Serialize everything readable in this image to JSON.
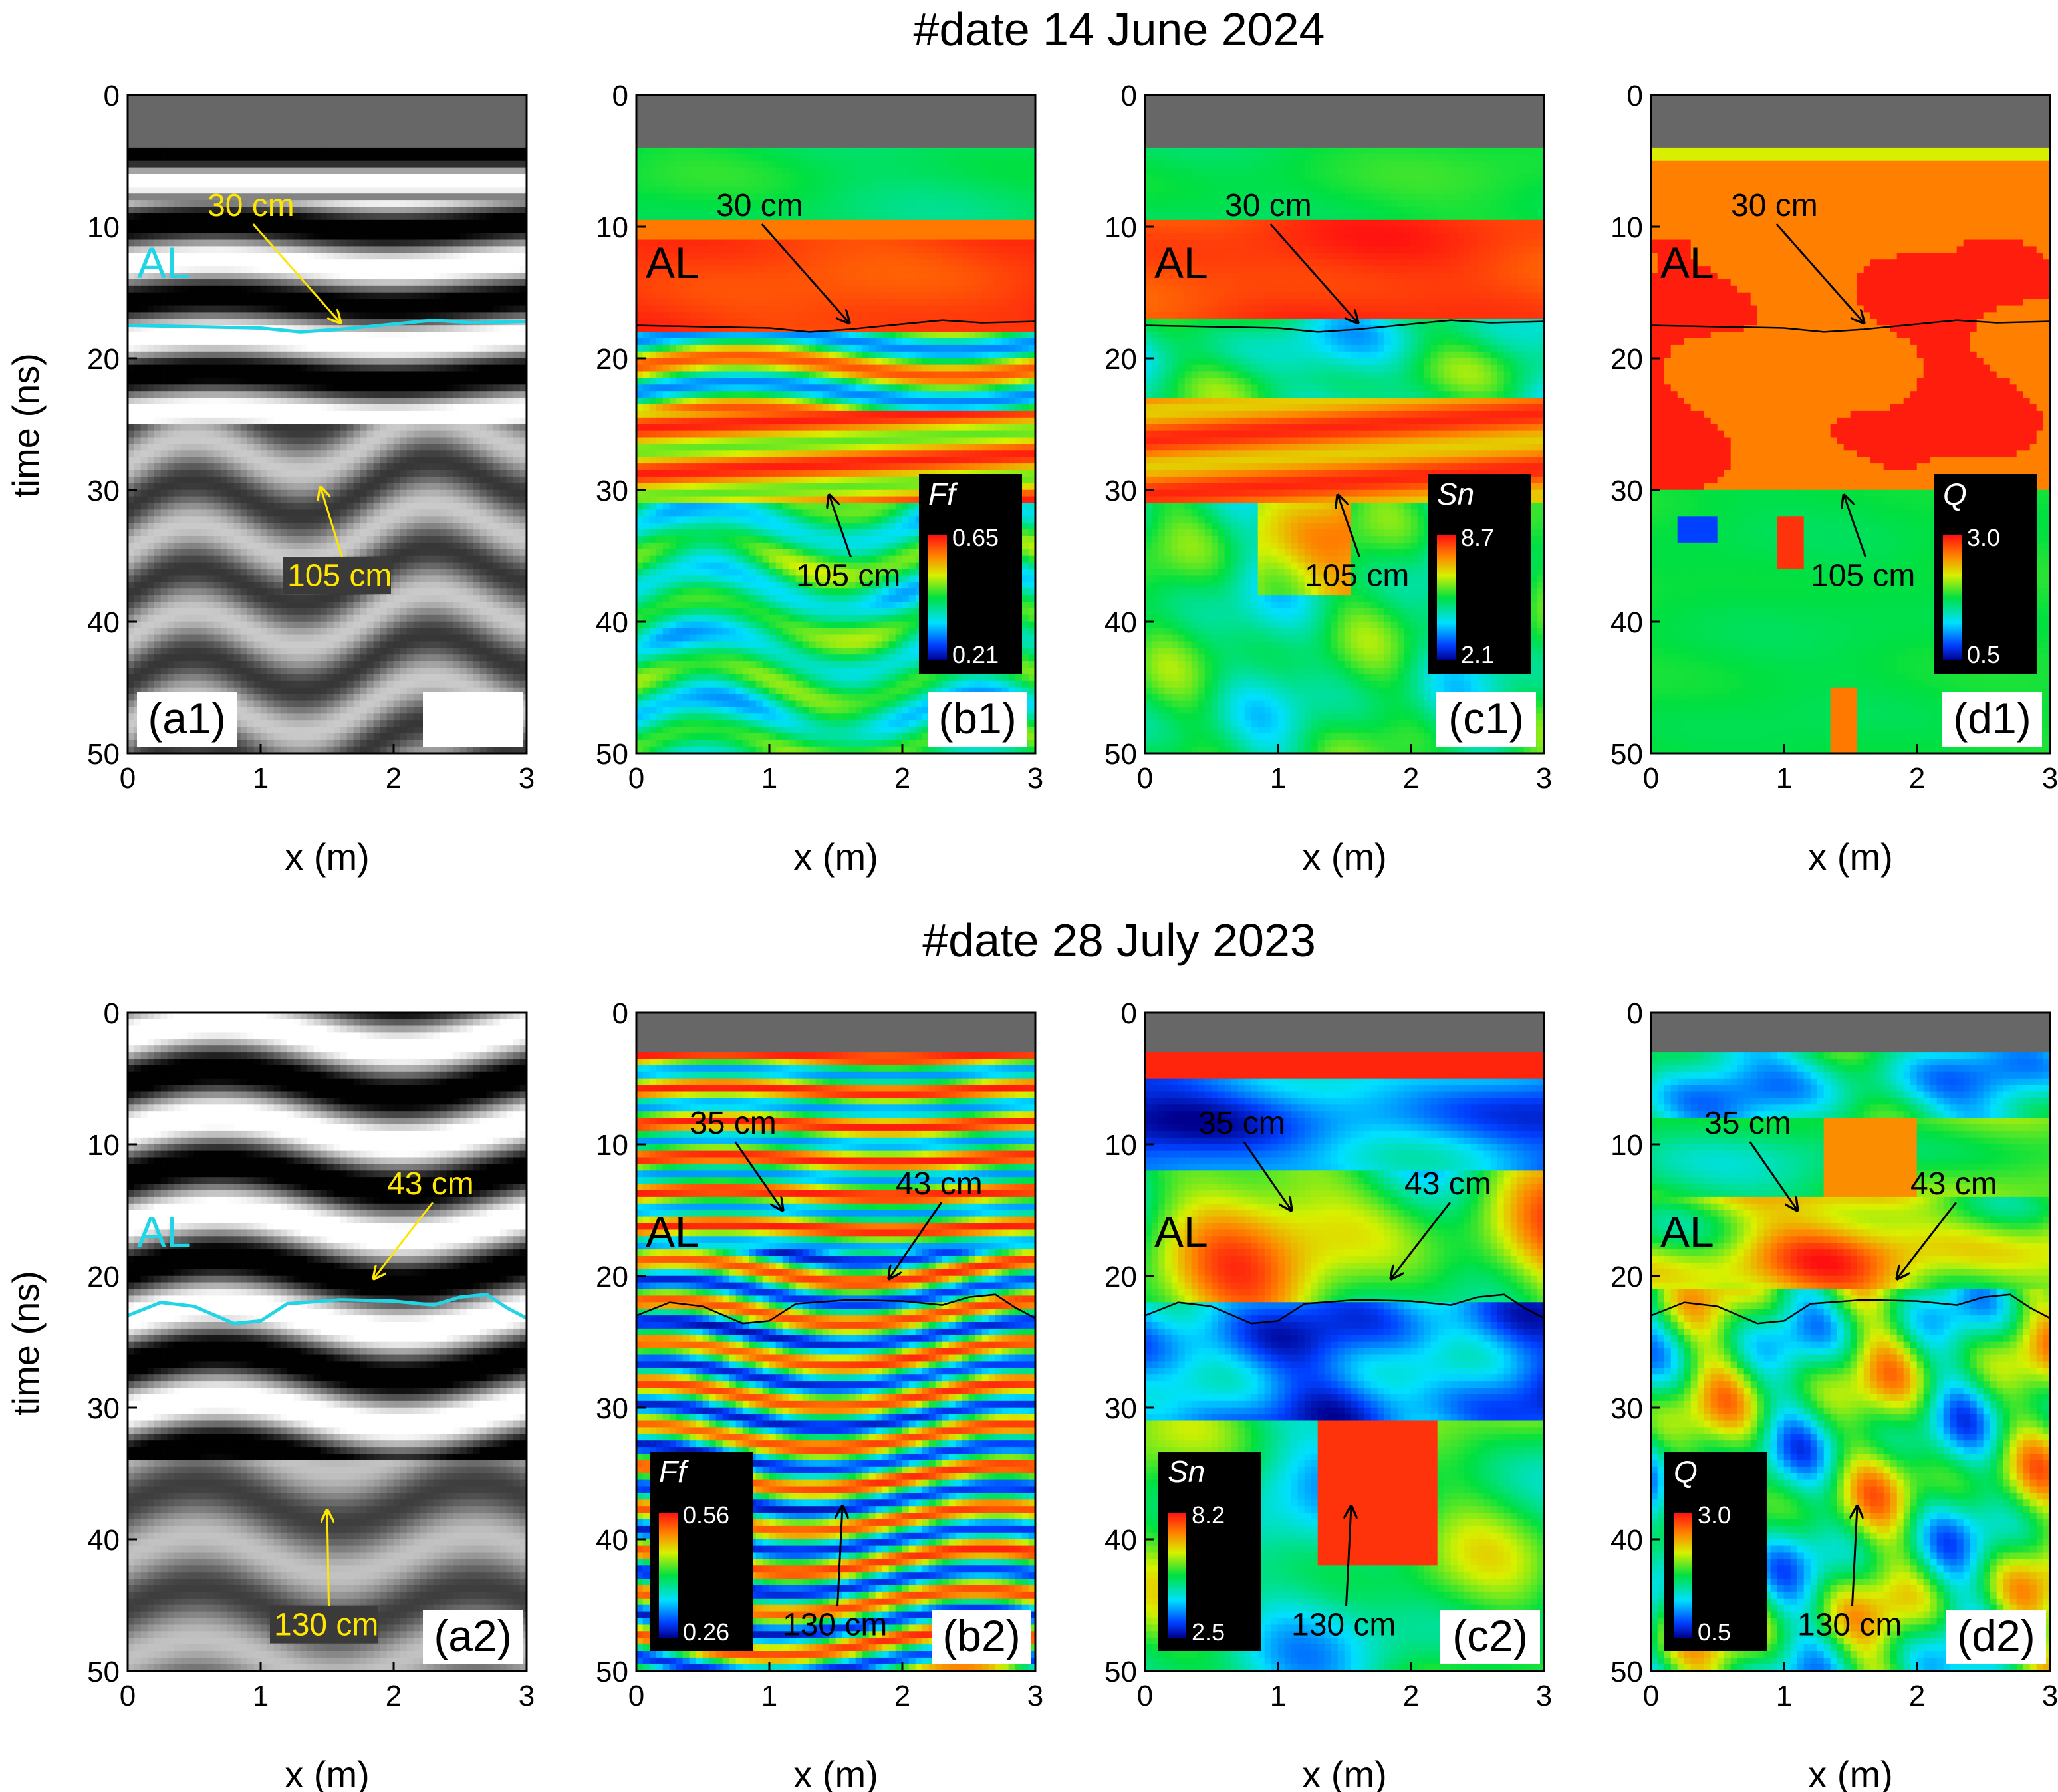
{
  "chart_data": {
    "type": "heatmap",
    "description_rows": [
      {
        "title": "#date 14 June 2024"
      },
      {
        "title": "#date 28 July 2023"
      }
    ],
    "xlabel": "x (m)",
    "ylabel": "time (ns)",
    "xlim": [
      0,
      3
    ],
    "ylim": [
      0,
      50
    ],
    "x_ticks": [
      "0",
      "1",
      "2",
      "3"
    ],
    "y_ticks": [
      "0",
      "10",
      "20",
      "30",
      "40",
      "50"
    ],
    "al_label": "AL",
    "panels": [
      {
        "id": "a1",
        "row": 0,
        "col": 0,
        "kind": "gpr",
        "label": "(a1)",
        "top_ns": 4.2,
        "line_color": "#21d4e6",
        "boundary": [
          [
            0,
            17.5
          ],
          [
            0.5,
            17.6
          ],
          [
            1.0,
            17.7
          ],
          [
            1.3,
            18.0
          ],
          [
            1.6,
            17.8
          ],
          [
            2.0,
            17.4
          ],
          [
            2.3,
            17.1
          ],
          [
            2.6,
            17.3
          ],
          [
            3,
            17.2
          ]
        ],
        "annotations": [
          {
            "text": "30 cm",
            "color": "#ffe600",
            "tx": 0.6,
            "ty": 9.2,
            "ax": 1.6,
            "ay": 17.3,
            "box": false
          },
          {
            "text": "105 cm",
            "color": "#ffe600",
            "tx": 1.2,
            "ty": 37.3,
            "ax": 1.45,
            "ay": 29.8,
            "box": true
          }
        ]
      },
      {
        "id": "b1",
        "row": 0,
        "col": 1,
        "kind": "Ff",
        "label": "(b1)",
        "top_ns": 4.2,
        "line_color": "#000000",
        "colorbar": {
          "name": "Ff",
          "max": "0.65",
          "min": "0.21",
          "corner": "bottom-right"
        },
        "boundary": [
          [
            0,
            17.5
          ],
          [
            0.5,
            17.6
          ],
          [
            1.0,
            17.7
          ],
          [
            1.3,
            18.0
          ],
          [
            1.6,
            17.8
          ],
          [
            2.0,
            17.4
          ],
          [
            2.3,
            17.1
          ],
          [
            2.6,
            17.3
          ],
          [
            3,
            17.2
          ]
        ],
        "annotations": [
          {
            "text": "30 cm",
            "color": "#000000",
            "tx": 0.6,
            "ty": 9.2,
            "ax": 1.6,
            "ay": 17.3,
            "box": false
          },
          {
            "text": "105 cm",
            "color": "#000000",
            "tx": 1.2,
            "ty": 37.3,
            "ax": 1.45,
            "ay": 30.4,
            "box": false
          }
        ]
      },
      {
        "id": "c1",
        "row": 0,
        "col": 2,
        "kind": "Sn",
        "label": "(c1)",
        "top_ns": 4.2,
        "line_color": "#000000",
        "colorbar": {
          "name": "Sn",
          "max": "8.7",
          "min": "2.1",
          "corner": "bottom-right"
        },
        "boundary": [
          [
            0,
            17.5
          ],
          [
            0.5,
            17.6
          ],
          [
            1.0,
            17.7
          ],
          [
            1.3,
            18.0
          ],
          [
            1.6,
            17.8
          ],
          [
            2.0,
            17.4
          ],
          [
            2.3,
            17.1
          ],
          [
            2.6,
            17.3
          ],
          [
            3,
            17.2
          ]
        ],
        "annotations": [
          {
            "text": "30 cm",
            "color": "#000000",
            "tx": 0.6,
            "ty": 9.2,
            "ax": 1.6,
            "ay": 17.3,
            "box": false
          },
          {
            "text": "105 cm",
            "color": "#000000",
            "tx": 1.2,
            "ty": 37.3,
            "ax": 1.45,
            "ay": 30.4,
            "box": false
          }
        ]
      },
      {
        "id": "d1",
        "row": 0,
        "col": 3,
        "kind": "Q1",
        "label": "(d1)",
        "top_ns": 4.2,
        "line_color": "#000000",
        "colorbar": {
          "name": "Q",
          "max": "3.0",
          "min": "0.5",
          "corner": "bottom-right"
        },
        "boundary": [
          [
            0,
            17.5
          ],
          [
            0.5,
            17.6
          ],
          [
            1.0,
            17.7
          ],
          [
            1.3,
            18.0
          ],
          [
            1.6,
            17.8
          ],
          [
            2.0,
            17.4
          ],
          [
            2.3,
            17.1
          ],
          [
            2.6,
            17.3
          ],
          [
            3,
            17.2
          ]
        ],
        "annotations": [
          {
            "text": "30 cm",
            "color": "#000000",
            "tx": 0.6,
            "ty": 9.2,
            "ax": 1.6,
            "ay": 17.3,
            "box": false
          },
          {
            "text": "105 cm",
            "color": "#000000",
            "tx": 1.2,
            "ty": 37.3,
            "ax": 1.45,
            "ay": 30.4,
            "box": false
          }
        ]
      },
      {
        "id": "a2",
        "row": 1,
        "col": 0,
        "kind": "gpr2",
        "label": "(a2)",
        "top_ns": 0,
        "line_color": "#21d4e6",
        "boundary": [
          [
            0,
            23.0
          ],
          [
            0.25,
            22.0
          ],
          [
            0.5,
            22.3
          ],
          [
            0.8,
            23.6
          ],
          [
            1.0,
            23.4
          ],
          [
            1.2,
            22.1
          ],
          [
            1.6,
            21.8
          ],
          [
            2.0,
            21.9
          ],
          [
            2.3,
            22.2
          ],
          [
            2.5,
            21.6
          ],
          [
            2.7,
            21.4
          ],
          [
            2.85,
            22.4
          ],
          [
            3,
            23.2
          ]
        ],
        "annotations": [
          {
            "text": "43 cm",
            "color": "#ffe600",
            "tx": 1.95,
            "ty": 13.8,
            "ax": 1.85,
            "ay": 20.2,
            "box": false
          },
          {
            "text": "130 cm",
            "color": "#ffe600",
            "tx": 1.1,
            "ty": 47.3,
            "ax": 1.5,
            "ay": 37.8,
            "box": true
          }
        ]
      },
      {
        "id": "b2",
        "row": 1,
        "col": 1,
        "kind": "Ff2",
        "label": "(b2)",
        "top_ns": 3.0,
        "line_color": "#000000",
        "colorbar": {
          "name": "Ff",
          "max": "0.56",
          "min": "0.26",
          "corner": "bottom-left"
        },
        "boundary": [
          [
            0,
            23.0
          ],
          [
            0.25,
            22.0
          ],
          [
            0.5,
            22.3
          ],
          [
            0.8,
            23.6
          ],
          [
            1.0,
            23.4
          ],
          [
            1.2,
            22.1
          ],
          [
            1.6,
            21.8
          ],
          [
            2.0,
            21.9
          ],
          [
            2.3,
            22.2
          ],
          [
            2.5,
            21.6
          ],
          [
            2.7,
            21.4
          ],
          [
            2.85,
            22.4
          ],
          [
            3,
            23.2
          ]
        ],
        "annotations": [
          {
            "text": "35 cm",
            "color": "#000000",
            "tx": 0.4,
            "ty": 9.2,
            "ax": 1.1,
            "ay": 15.0,
            "box": false
          },
          {
            "text": "43 cm",
            "color": "#000000",
            "tx": 1.95,
            "ty": 13.8,
            "ax": 1.9,
            "ay": 20.2,
            "box": false
          },
          {
            "text": "130 cm",
            "color": "#000000",
            "tx": 1.1,
            "ty": 47.3,
            "ax": 1.55,
            "ay": 37.5,
            "box": false
          }
        ]
      },
      {
        "id": "c2",
        "row": 1,
        "col": 2,
        "kind": "Sn2",
        "label": "(c2)",
        "top_ns": 3.0,
        "line_color": "#000000",
        "colorbar": {
          "name": "Sn",
          "max": "8.2",
          "min": "2.5",
          "corner": "bottom-left"
        },
        "boundary": [
          [
            0,
            23.0
          ],
          [
            0.25,
            22.0
          ],
          [
            0.5,
            22.3
          ],
          [
            0.8,
            23.6
          ],
          [
            1.0,
            23.4
          ],
          [
            1.2,
            22.1
          ],
          [
            1.6,
            21.8
          ],
          [
            2.0,
            21.9
          ],
          [
            2.3,
            22.2
          ],
          [
            2.5,
            21.6
          ],
          [
            2.7,
            21.4
          ],
          [
            2.85,
            22.4
          ],
          [
            3,
            23.2
          ]
        ],
        "annotations": [
          {
            "text": "35 cm",
            "color": "#000000",
            "tx": 0.4,
            "ty": 9.2,
            "ax": 1.1,
            "ay": 15.0,
            "box": false
          },
          {
            "text": "43 cm",
            "color": "#000000",
            "tx": 1.95,
            "ty": 13.8,
            "ax": 1.85,
            "ay": 20.2,
            "box": false
          },
          {
            "text": "130 cm",
            "color": "#000000",
            "tx": 1.1,
            "ty": 47.3,
            "ax": 1.55,
            "ay": 37.5,
            "box": false
          }
        ]
      },
      {
        "id": "d2",
        "row": 1,
        "col": 3,
        "kind": "Q2",
        "label": "(d2)",
        "top_ns": 3.0,
        "line_color": "#000000",
        "colorbar": {
          "name": "Q",
          "max": "3.0",
          "min": "0.5",
          "corner": "bottom-left"
        },
        "boundary": [
          [
            0,
            23.0
          ],
          [
            0.25,
            22.0
          ],
          [
            0.5,
            22.3
          ],
          [
            0.8,
            23.6
          ],
          [
            1.0,
            23.4
          ],
          [
            1.2,
            22.1
          ],
          [
            1.6,
            21.8
          ],
          [
            2.0,
            21.9
          ],
          [
            2.3,
            22.2
          ],
          [
            2.5,
            21.6
          ],
          [
            2.7,
            21.4
          ],
          [
            2.85,
            22.4
          ],
          [
            3,
            23.2
          ]
        ],
        "annotations": [
          {
            "text": "35 cm",
            "color": "#000000",
            "tx": 0.4,
            "ty": 9.2,
            "ax": 1.1,
            "ay": 15.0,
            "box": false
          },
          {
            "text": "43 cm",
            "color": "#000000",
            "tx": 1.95,
            "ty": 13.8,
            "ax": 1.85,
            "ay": 20.2,
            "box": false
          },
          {
            "text": "130 cm",
            "color": "#000000",
            "tx": 1.1,
            "ty": 47.3,
            "ax": 1.55,
            "ay": 37.5,
            "box": false
          }
        ]
      }
    ]
  }
}
